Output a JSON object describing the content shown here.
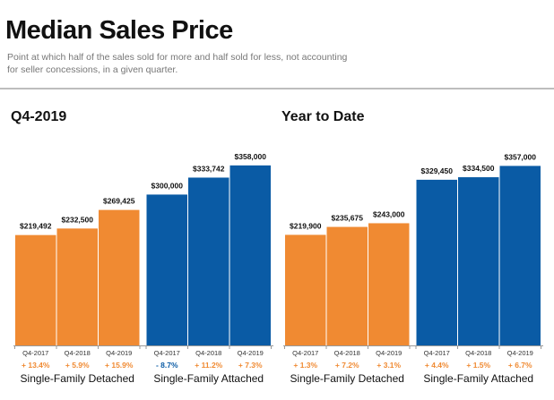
{
  "header": {
    "title": "Median Sales Price",
    "subtitle": "Point at which half of the sales sold for more and half sold for less, not accounting for seller concessions, in a given quarter."
  },
  "colors": {
    "detached": "#f08a32",
    "attached": "#0a5ba5",
    "positive_change": "#f08a32"
  },
  "chart_data": [
    {
      "type": "bar",
      "title": "Q4-2019",
      "ylim": [
        0,
        420000
      ],
      "groups": [
        {
          "name": "Single-Family Detached",
          "color": "#f08a32",
          "categories": [
            "Q4-2017",
            "Q4-2018",
            "Q4-2019"
          ],
          "values": [
            219492,
            232500,
            269425
          ],
          "labels": [
            "$219,492",
            "$232,500",
            "$269,425"
          ],
          "changes": [
            "+ 13.4%",
            "+ 5.9%",
            "+ 15.9%"
          ]
        },
        {
          "name": "Single-Family Attached",
          "color": "#0a5ba5",
          "categories": [
            "Q4-2017",
            "Q4-2018",
            "Q4-2019"
          ],
          "values": [
            300000,
            333742,
            358000
          ],
          "labels": [
            "$300,000",
            "$333,742",
            "$358,000"
          ],
          "changes": [
            "- 8.7%",
            "+ 11.2%",
            "+ 7.3%"
          ]
        }
      ]
    },
    {
      "type": "bar",
      "title": "Year to Date",
      "ylim": [
        0,
        420000
      ],
      "groups": [
        {
          "name": "Single-Family Detached",
          "color": "#f08a32",
          "categories": [
            "Q4-2017",
            "Q4-2018",
            "Q4-2019"
          ],
          "values": [
            219900,
            235675,
            243000
          ],
          "labels": [
            "$219,900",
            "$235,675",
            "$243,000"
          ],
          "changes": [
            "+ 1.3%",
            "+ 7.2%",
            "+ 3.1%"
          ]
        },
        {
          "name": "Single-Family Attached",
          "color": "#0a5ba5",
          "categories": [
            "Q4-2017",
            "Q4-2018",
            "Q4-2019"
          ],
          "values": [
            329450,
            334500,
            357000
          ],
          "labels": [
            "$329,450",
            "$334,500",
            "$357,000"
          ],
          "changes": [
            "+ 4.4%",
            "+ 1.5%",
            "+ 6.7%"
          ]
        }
      ]
    }
  ]
}
